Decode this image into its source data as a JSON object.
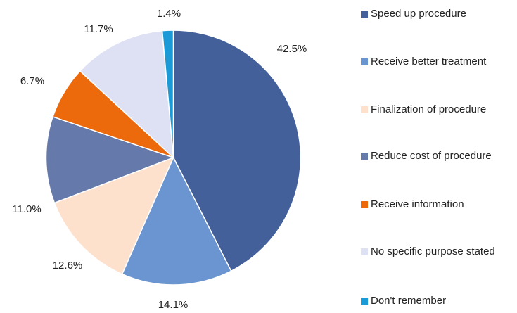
{
  "chart_data": {
    "type": "pie",
    "categories": [
      "Speed up procedure",
      "Receive better treatment",
      "Finalization of procedure",
      "Reduce cost of procedure",
      "Receive information",
      "No specific purpose stated",
      "Don't remember"
    ],
    "values": [
      42.5,
      14.1,
      12.6,
      11.0,
      6.7,
      11.7,
      1.4
    ],
    "value_labels": [
      "42.5%",
      "14.1%",
      "12.6%",
      "11.0%",
      "6.7%",
      "11.7%",
      "1.4%"
    ],
    "colors": [
      "#44609a",
      "#6b95d1",
      "#fde1cd",
      "#6579aa",
      "#ec6a0c",
      "#dde1f3",
      "#1a9bd7"
    ],
    "legend": "right"
  }
}
